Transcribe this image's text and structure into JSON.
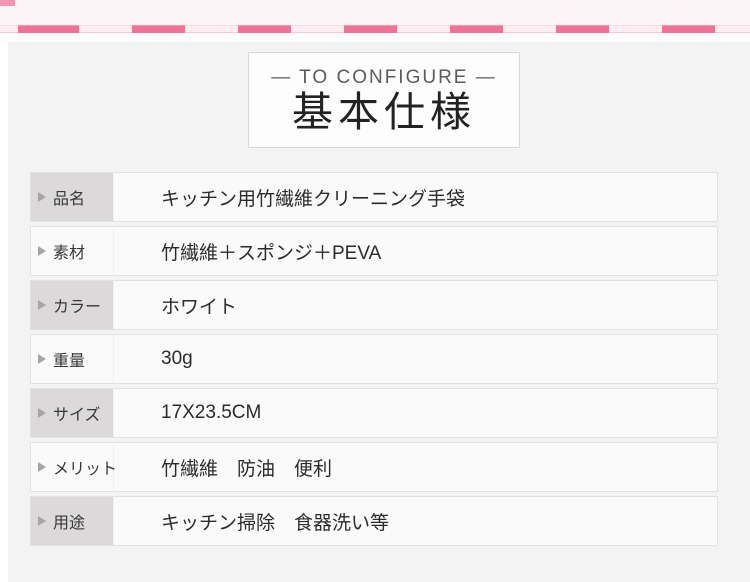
{
  "header": {
    "subtitle": "— TO CONFIGURE —",
    "title": "基本仕様"
  },
  "decor": {
    "dashed_divider_icon": "pink-dashed-line",
    "accent_pink": "#ef7299",
    "accent_pink_light": "#f6cbd9",
    "label_cell_bg": "#dbd9da",
    "panel_bg": "#f4f3f3"
  },
  "spec_table": {
    "rows": [
      {
        "label": "品名",
        "value": "キッチン用竹繊維クリーニング手袋"
      },
      {
        "label": "素材",
        "value": "竹繊維＋スポンジ＋PEVA"
      },
      {
        "label": "カラー",
        "value": "ホワイト"
      },
      {
        "label": "重量",
        "value": "30g"
      },
      {
        "label": "サイズ",
        "value": "17X23.5CM"
      },
      {
        "label": "メリット",
        "value": "竹繊維　防油　便利"
      },
      {
        "label": "用途",
        "value": "キッチン掃除　食器洗い等"
      }
    ]
  }
}
